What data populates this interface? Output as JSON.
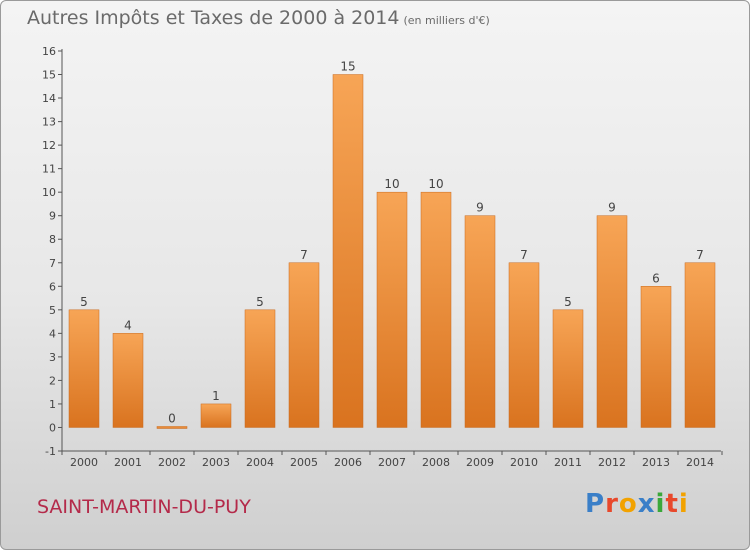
{
  "header": {
    "title": "Autres Impôts et Taxes de 2000 à 2014",
    "subtitle": "(en milliers d'€)"
  },
  "footer": {
    "commune": "SAINT-MARTIN-DU-PUY",
    "logo_text": "Proxiti",
    "logo_colors": [
      "#3a7fc8",
      "#e8482b",
      "#f2a200",
      "#3a7fc8",
      "#3aa83a",
      "#e8482b",
      "#f2a200"
    ]
  },
  "colors": {
    "bar_light": "#f7a556",
    "bar_dark": "#d9731f",
    "commune_text": "#b42a4a"
  },
  "chart_data": {
    "type": "bar",
    "title": "Autres Impôts et Taxes de 2000 à 2014",
    "subtitle": "(en milliers d'€)",
    "categories": [
      "2000",
      "2001",
      "2002",
      "2003",
      "2004",
      "2005",
      "2006",
      "2007",
      "2008",
      "2009",
      "2010",
      "2011",
      "2012",
      "2013",
      "2014"
    ],
    "values": [
      5,
      4,
      0,
      1,
      5,
      7,
      15,
      10,
      10,
      9,
      7,
      5,
      9,
      6,
      7
    ],
    "data_labels": [
      "5",
      "4",
      "0",
      "1",
      "5",
      "7",
      "15",
      "10",
      "10",
      "9",
      "7",
      "5",
      "9",
      "6",
      "7"
    ],
    "yticks": [
      -1,
      0,
      1,
      2,
      3,
      4,
      5,
      6,
      7,
      8,
      9,
      10,
      11,
      12,
      13,
      14,
      15,
      16
    ],
    "ylim": [
      -1,
      16
    ],
    "xlabel": "",
    "ylabel": "",
    "grid": false,
    "legend": "none"
  }
}
